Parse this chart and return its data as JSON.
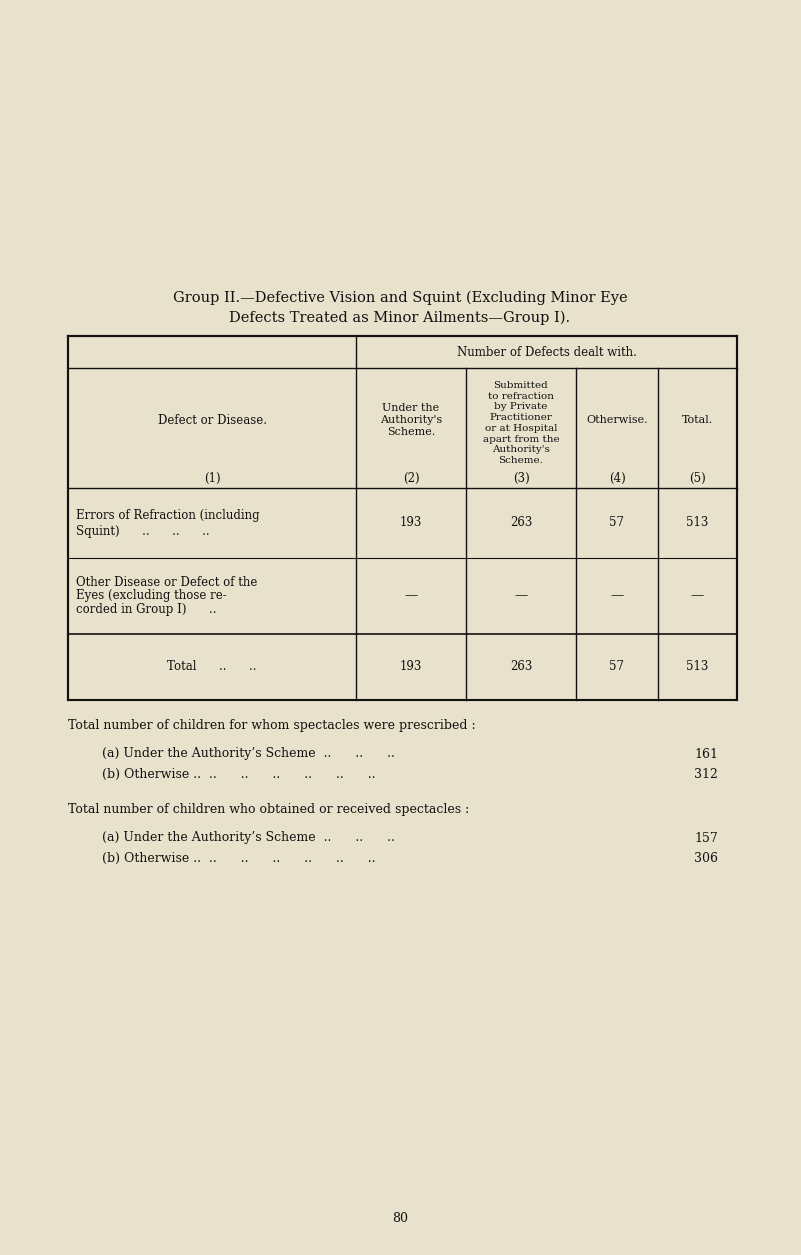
{
  "bg_color": "#e8e2cc",
  "title_line1": "Group II.—Defective Vision and Squint (Excluding Minor Eye",
  "title_line2": "Defects Treated as Minor Ailments—Group I).",
  "title_fontsize": 10.5,
  "col_header_main": "Number of Defects dealt with.",
  "col_header_sub1": "Under the\nAuthority's\nScheme.",
  "col_header_sub2": "Submitted\nto refraction\nby Private\nPractitioner\nor at Hospital\napart from the\nAuthority's\nScheme.",
  "col_header_sub3": "Otherwise.",
  "col_header_sub4": "Total.",
  "col_num1": "(1)",
  "col_num2": "(2)",
  "col_num3": "(3)",
  "col_num4": "(4)",
  "col_num5": "(5)",
  "row1_label_a": "Errors of Refraction (including",
  "row1_label_b": "Squint)      ..      ..      ..",
  "row1_c2": "193",
  "row1_c3": "263",
  "row1_c4": "57",
  "row1_c5": "513",
  "row2_label_a": "Other Disease or Defect of the",
  "row2_label_b": "Eyes (excluding those re-",
  "row2_label_c": "corded in Group I)      ..",
  "row2_c2": "—",
  "row2_c3": "—",
  "row2_c4": "—",
  "row2_c5": "—",
  "total_label": "Total      ..      ..",
  "total_c2": "193",
  "total_c3": "263",
  "total_c4": "57",
  "total_c5": "513",
  "footer_line1": "Total number of children for whom spectacles were prescribed :",
  "footer_a_label": "(a) Under the Authority’s Scheme",
  "footer_a_dots": "..      ..      ..",
  "footer_a_val": "161",
  "footer_b_label": "(b) Otherwise ..",
  "footer_b_dots": "..      ..      ..      ..      ..      ..",
  "footer_b_val": "312",
  "footer_line2": "Total number of children who obtained or received spectacles :",
  "footer_c_label": "(a) Under the Authority’s Scheme",
  "footer_c_dots": "..      ..      ..",
  "footer_c_val": "157",
  "footer_d_label": "(b) Otherwise ..",
  "footer_d_dots": "..      ..      ..      ..      ..      ..",
  "footer_d_val": "306",
  "page_number": "80",
  "text_color": "#111111",
  "border_color": "#111111",
  "font_size_table": 8.5,
  "font_size_footer": 9.0,
  "font_size_title": 10.5
}
